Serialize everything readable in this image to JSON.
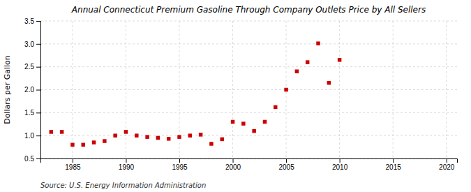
{
  "chart_data": {
    "type": "scatter",
    "title": "Annual Connecticut Premium Gasoline Through Company Outlets Price by All Sellers",
    "y_label": "Dollars per Gallon",
    "source": "Source: U.S. Energy Information Administration",
    "x": [
      1983,
      1984,
      1985,
      1986,
      1987,
      1988,
      1989,
      1990,
      1991,
      1992,
      1993,
      1994,
      1995,
      1996,
      1997,
      1998,
      1999,
      2000,
      2001,
      2002,
      2003,
      2004,
      2005,
      2006,
      2007,
      2008,
      2009,
      2010
    ],
    "values": [
      1.08,
      1.08,
      0.8,
      0.8,
      0.85,
      0.88,
      1.0,
      1.08,
      1.0,
      0.97,
      0.95,
      0.93,
      0.97,
      1.0,
      1.02,
      0.82,
      0.92,
      1.3,
      1.26,
      1.1,
      1.3,
      1.62,
      2.0,
      2.4,
      2.6,
      3.01,
      2.15,
      2.65
    ],
    "color": "#cc0000",
    "marker": "square",
    "xlim": [
      1982,
      2021
    ],
    "ylim": [
      0.5,
      3.5
    ],
    "xticks": [
      1985,
      1990,
      1995,
      2000,
      2005,
      2010,
      2015,
      2020
    ],
    "yticks": [
      0.5,
      {
        "value": 1.0,
        "label": "1.0"
      },
      1.5,
      {
        "value": 2.0,
        "label": "2.0"
      },
      2.5,
      {
        "value": 3.0,
        "label": "3.0"
      },
      3.5
    ],
    "grid": true
  }
}
